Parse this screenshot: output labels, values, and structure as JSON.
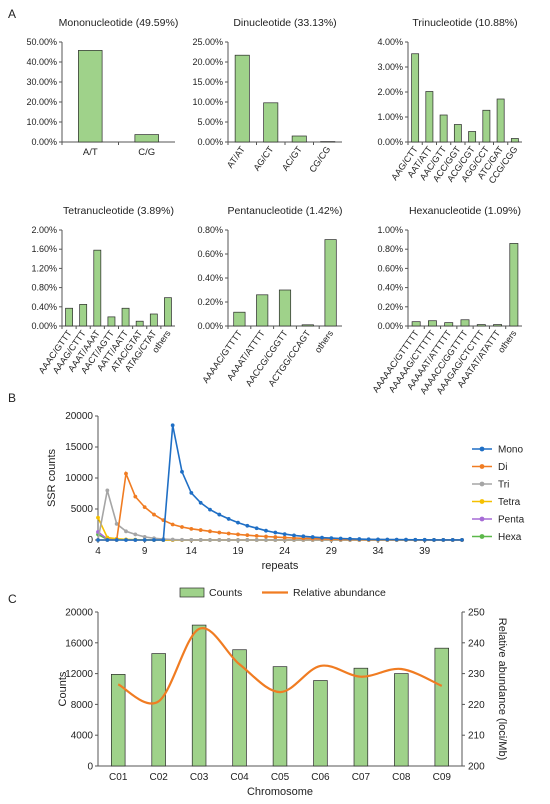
{
  "panel_labels": [
    "A",
    "B",
    "C"
  ],
  "colors": {
    "bar_fill": "#9fd28a",
    "bar_stroke": "#2a2a2a",
    "axis": "#555555",
    "mono": "#1f6fc5",
    "di": "#f07c22",
    "tri": "#a5a5a5",
    "tetra": "#f5c000",
    "penta": "#a66bd6",
    "hexa": "#5cb84a",
    "relative": "#f07c22"
  },
  "chart_data": [
    {
      "id": "mono",
      "type": "bar",
      "title": "Mononucleotide (49.59%)",
      "categories": [
        "A/T",
        "C/G"
      ],
      "values": [
        45.8,
        3.7
      ],
      "yticks": [
        "0.00%",
        "10.00%",
        "20.00%",
        "30.00%",
        "40.00%",
        "50.00%"
      ],
      "ylim": [
        0,
        50
      ],
      "xlabel": "",
      "ylabel": "",
      "grid": false
    },
    {
      "id": "di",
      "type": "bar",
      "title": "Dinucleotide (33.13%)",
      "categories": [
        "AT/AT",
        "AG/CT",
        "AC/GT",
        "CG/CG"
      ],
      "values": [
        21.7,
        9.8,
        1.5,
        0.1
      ],
      "yticks": [
        "0.00%",
        "5.00%",
        "10.00%",
        "15.00%",
        "20.00%",
        "25.00%"
      ],
      "ylim": [
        0,
        25
      ],
      "xlabel": "",
      "ylabel": "",
      "grid": false
    },
    {
      "id": "tri",
      "type": "bar",
      "title": "Trinucleotide (10.88%)",
      "categories": [
        "AAG/CTT",
        "AAT/ATT",
        "AAC/GTT",
        "ACC/GGT",
        "ACG/CGT",
        "AGG/CCT",
        "ATC/GAT",
        "CCG/CGG"
      ],
      "values": [
        3.53,
        2.02,
        1.08,
        0.7,
        0.42,
        1.27,
        1.72,
        0.14
      ],
      "yticks": [
        "0.00%",
        "1.00%",
        "2.00%",
        "3.00%",
        "4.00%"
      ],
      "ylim": [
        0,
        4
      ],
      "xlabel": "",
      "ylabel": "",
      "grid": false
    },
    {
      "id": "tetra",
      "type": "bar",
      "title": "Tetranucleotide (3.89%)",
      "categories": [
        "AAAC/GTTT",
        "AAAG/CTTT",
        "AAAT/AAAT",
        "AACT/AGTT",
        "AATT/AATT",
        "ATAC/GTAT",
        "ATAG/CTAT",
        "others"
      ],
      "values": [
        0.37,
        0.45,
        1.58,
        0.19,
        0.37,
        0.1,
        0.25,
        0.59
      ],
      "yticks": [
        "0.00%",
        "0.40%",
        "0.80%",
        "1.20%",
        "1.60%",
        "2.00%"
      ],
      "ylim": [
        0,
        2
      ],
      "xlabel": "",
      "ylabel": "",
      "grid": false
    },
    {
      "id": "penta",
      "type": "bar",
      "title": "Pentanucleotide (1.42%)",
      "categories": [
        "AAAAC/GTTTT",
        "AAAAT/ATTTT",
        "AACCG/CGGTT",
        "ACTGG/CCAGT",
        "others"
      ],
      "values": [
        0.115,
        0.26,
        0.3,
        0.01,
        0.72
      ],
      "yticks": [
        "0.00%",
        "0.20%",
        "0.40%",
        "0.60%",
        "0.80%"
      ],
      "ylim": [
        0,
        0.8
      ],
      "xlabel": "",
      "ylabel": "",
      "grid": false
    },
    {
      "id": "hexa",
      "type": "bar",
      "title": "Hexanucleotide (1.09%)",
      "categories": [
        "AAAAAC/GTTTTT",
        "AAAAAG/CTTTTT",
        "AAAAAT/ATTTTT",
        "AAAACC/GGTTTT",
        "AAAGAG/CTCTTT",
        "AAATAT/ATATTT",
        "others"
      ],
      "values": [
        0.045,
        0.055,
        0.035,
        0.065,
        0.015,
        0.015,
        0.86
      ],
      "yticks": [
        "0.00%",
        "0.20%",
        "0.40%",
        "0.60%",
        "0.80%",
        "1.00%"
      ],
      "ylim": [
        0,
        1
      ],
      "xlabel": "",
      "ylabel": "",
      "grid": false
    },
    {
      "id": "repeats",
      "type": "line",
      "xlabel": "repeats",
      "ylabel": "SSR counts",
      "xlim": [
        4,
        43
      ],
      "ylim": [
        0,
        20000
      ],
      "xticks": [
        4,
        9,
        14,
        19,
        24,
        29,
        34,
        39
      ],
      "yticks": [
        0,
        5000,
        10000,
        15000,
        20000
      ],
      "legend_position": "right",
      "series": [
        {
          "name": "Mono",
          "x": [
            4,
            5,
            6,
            7,
            8,
            9,
            10,
            11,
            12,
            13,
            14,
            15,
            16,
            17,
            18,
            19,
            20,
            21,
            22,
            23,
            24,
            25,
            26,
            27,
            28,
            29,
            30,
            31,
            32,
            33,
            34,
            35,
            36,
            37,
            38,
            39,
            40,
            41,
            42,
            43
          ],
          "y": [
            0,
            0,
            0,
            0,
            0,
            0,
            0,
            0,
            18500,
            11000,
            7600,
            6000,
            4900,
            4100,
            3400,
            2800,
            2300,
            1900,
            1500,
            1200,
            950,
            750,
            600,
            470,
            370,
            300,
            240,
            190,
            150,
            120,
            95,
            75,
            60,
            48,
            38,
            30,
            24,
            19,
            15,
            12
          ]
        },
        {
          "name": "Di",
          "x": [
            4,
            5,
            6,
            7,
            8,
            9,
            10,
            11,
            12,
            13,
            14,
            15,
            16,
            17,
            18,
            19,
            20,
            21,
            22,
            23,
            24,
            25,
            26,
            27,
            28,
            29,
            30,
            31,
            32,
            33,
            34,
            35,
            36,
            37,
            38,
            39,
            40,
            41,
            42,
            43
          ],
          "y": [
            0,
            0,
            0,
            10700,
            7000,
            5300,
            4100,
            3200,
            2500,
            2100,
            1800,
            1600,
            1400,
            1200,
            1050,
            900,
            780,
            660,
            560,
            470,
            390,
            320,
            270,
            220,
            180,
            150,
            120,
            100,
            80,
            65,
            52,
            42,
            34,
            28,
            22,
            18,
            14,
            11,
            9,
            7
          ]
        },
        {
          "name": "Tri",
          "x": [
            4,
            5,
            6,
            7,
            8,
            9,
            10,
            11,
            12,
            13,
            14,
            15,
            16,
            17,
            18,
            19,
            20,
            21,
            22,
            23,
            24,
            25,
            26,
            27,
            28,
            29,
            30,
            31,
            32,
            33,
            34,
            35,
            36,
            37,
            38,
            39,
            40,
            41,
            42,
            43
          ],
          "y": [
            0,
            8000,
            2600,
            1400,
            900,
            500,
            280,
            150,
            80,
            40,
            20,
            10,
            5,
            0,
            0,
            0,
            0,
            0,
            0,
            0,
            0,
            0,
            0,
            0,
            0,
            0,
            0,
            0,
            0,
            0,
            0,
            0,
            0,
            0,
            0,
            0,
            0,
            0,
            0,
            0
          ]
        },
        {
          "name": "Tetra",
          "x": [
            4,
            5,
            6,
            7,
            8,
            9,
            10,
            11,
            12,
            13,
            14,
            15,
            16,
            17,
            18,
            19,
            20,
            21,
            22,
            23,
            24,
            25,
            26,
            27,
            28,
            29,
            30,
            31,
            32,
            33,
            34,
            35,
            36,
            37,
            38,
            39,
            40,
            41,
            42,
            43
          ],
          "y": [
            3600,
            400,
            200,
            100,
            50,
            20,
            10,
            5,
            0,
            0,
            0,
            0,
            0,
            0,
            0,
            0,
            0,
            0,
            0,
            0,
            0,
            0,
            0,
            0,
            0,
            0,
            0,
            0,
            0,
            0,
            0,
            0,
            0,
            0,
            0,
            0,
            0,
            0,
            0,
            0
          ]
        },
        {
          "name": "Penta",
          "x": [
            4,
            5,
            6,
            7,
            8,
            9,
            10,
            11,
            12,
            13,
            14,
            15,
            16,
            17,
            18,
            19,
            20,
            21,
            22,
            23,
            24,
            25,
            26,
            27,
            28,
            29,
            30,
            31,
            32,
            33,
            34,
            35,
            36,
            37,
            38,
            39,
            40,
            41,
            42,
            43
          ],
          "y": [
            1300,
            150,
            60,
            20,
            10,
            5,
            0,
            0,
            0,
            0,
            0,
            0,
            0,
            0,
            0,
            0,
            0,
            0,
            0,
            0,
            0,
            0,
            0,
            0,
            0,
            0,
            0,
            0,
            0,
            0,
            0,
            0,
            0,
            0,
            0,
            0,
            0,
            0,
            0,
            0
          ]
        },
        {
          "name": "Hexa",
          "x": [
            4,
            5,
            6,
            7,
            8,
            9,
            10,
            11,
            12,
            13,
            14,
            15,
            16,
            17,
            18,
            19,
            20,
            21,
            22,
            23,
            24,
            25,
            26,
            27,
            28,
            29,
            30,
            31,
            32,
            33,
            34,
            35,
            36,
            37,
            38,
            39,
            40,
            41,
            42,
            43
          ],
          "y": [
            900,
            120,
            50,
            20,
            10,
            5,
            0,
            0,
            0,
            0,
            0,
            0,
            0,
            0,
            0,
            0,
            0,
            0,
            0,
            0,
            0,
            0,
            0,
            0,
            0,
            0,
            0,
            0,
            0,
            0,
            0,
            0,
            0,
            0,
            0,
            0,
            0,
            0,
            0,
            0
          ]
        }
      ]
    },
    {
      "id": "chromosome",
      "type": "bar",
      "xlabel": "Chromosome",
      "ylabel": "Counts",
      "y2label": "Relative abundance (loci/Mb)",
      "categories": [
        "C01",
        "C02",
        "C03",
        "C04",
        "C05",
        "C06",
        "C07",
        "C08",
        "C09"
      ],
      "series": [
        {
          "name": "Counts",
          "type": "bar",
          "axis": "left",
          "values": [
            11900,
            14600,
            18300,
            15100,
            12900,
            11100,
            12700,
            12000,
            15300
          ]
        },
        {
          "name": "Relative abundance",
          "type": "line",
          "axis": "right",
          "values": [
            226.5,
            221,
            244.5,
            233,
            224,
            232.5,
            229,
            231.5,
            226
          ]
        }
      ],
      "ylim": [
        0,
        20000
      ],
      "yticks": [
        0,
        4000,
        8000,
        12000,
        16000,
        20000
      ],
      "y2lim": [
        200,
        250
      ],
      "y2ticks": [
        200,
        210,
        220,
        230,
        240,
        250
      ],
      "legend_position": "top"
    }
  ]
}
